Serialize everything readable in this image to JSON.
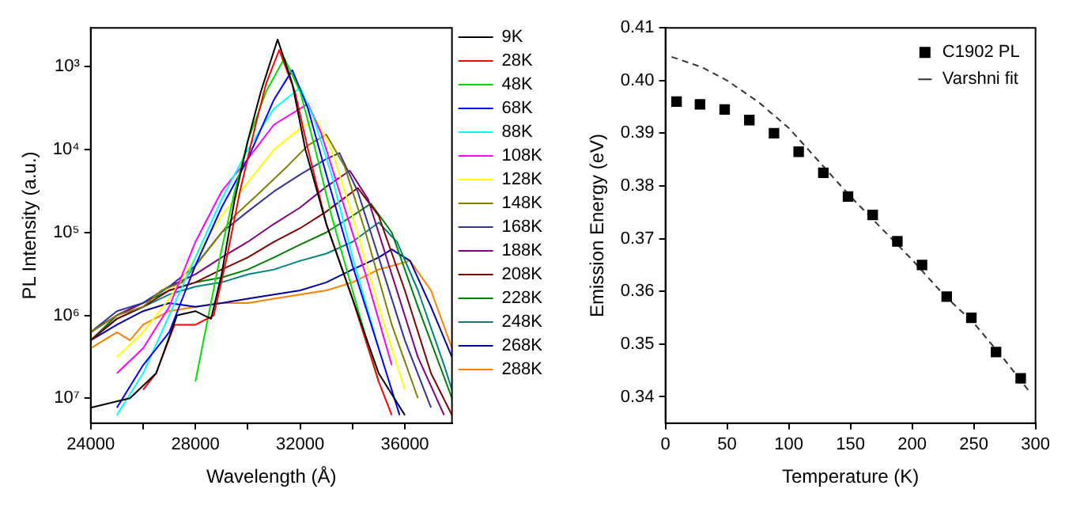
{
  "chart_data": [
    {
      "type": "line",
      "xlabel": "Wavelength (Å)",
      "ylabel": "PL Intensity (a.u.)",
      "xlim": [
        24000,
        37800
      ],
      "xticks": [
        24000,
        {
          "value": 26000,
          "label": null
        },
        28000,
        {
          "value": 30000,
          "label": null
        },
        32000,
        {
          "value": 34000,
          "label": null
        },
        36000
      ],
      "ylim": [
        20000000.0,
        340
      ],
      "yticks": [
        {
          "value": 1000,
          "label": "10³"
        },
        {
          "value": 10000,
          "label": "10⁴"
        },
        {
          "value": 100000,
          "label": "10⁵"
        },
        {
          "value": 1000000,
          "label": "10⁶"
        },
        {
          "value": 10000000,
          "label": "10⁷"
        }
      ],
      "log": "y",
      "legend": "right",
      "marker": "none",
      "series": [
        {
          "name": "9K",
          "color": "#000000",
          "x": [
            24000,
            25500,
            26500,
            27300,
            28000,
            28600,
            29000,
            29500,
            30000,
            30500,
            31140,
            31700,
            32200,
            33000,
            34000,
            35000,
            36000
          ],
          "values": [
            13000000.0,
            10000000.0,
            5000000.0,
            1000000.0,
            890000.0,
            1100000.0,
            320000.0,
            40000.0,
            7900.0,
            2000.0,
            470,
            1600.0,
            10000.0,
            79000.0,
            630000.0,
            5000000.0,
            16000000.0
          ]
        },
        {
          "name": "28K",
          "color": "#ff0000",
          "x": [
            26000,
            26500,
            27200,
            28000,
            28700,
            29200,
            29700,
            30300,
            30700,
            31200,
            31800,
            32300,
            33000,
            34000,
            35000,
            35500
          ],
          "values": [
            7900000.0,
            5000000.0,
            1300000.0,
            1300000.0,
            1000000.0,
            200000.0,
            32000.0,
            5000.0,
            1600.0,
            630,
            2000.0,
            10000.0,
            79000.0,
            630000.0,
            6300000.0,
            16000000.0
          ]
        },
        {
          "name": "48K",
          "color": "#00e000",
          "x": [
            28000,
            28500,
            29000,
            29500,
            30000,
            30700,
            31400,
            32000,
            32500,
            33200,
            34000,
            35000
          ],
          "values": [
            6300000.0,
            1000000.0,
            160000.0,
            32000.0,
            7900.0,
            2000.0,
            790,
            2000.0,
            7900.0,
            63000.0,
            500000.0,
            6300000.0
          ]
        },
        {
          "name": "68K",
          "color": "#0000ff",
          "x": [
            25000,
            26000,
            27000,
            27500,
            28000,
            29000,
            30000,
            31000,
            31700,
            32300,
            33000,
            34000,
            35000,
            35800
          ],
          "values": [
            13000000.0,
            4000000.0,
            1600000.0,
            630000.0,
            250000.0,
            50000.0,
            13000.0,
            2500.0,
            1100.0,
            3200.0,
            20000.0,
            250000.0,
            2500000.0,
            16000000.0
          ]
        },
        {
          "name": "88K",
          "color": "#00ffff",
          "x": [
            25000,
            26000,
            27000,
            28000,
            29000,
            30000,
            31000,
            32000,
            32500,
            33200,
            34000,
            35000
          ],
          "values": [
            16000000.0,
            5000000.0,
            1000000.0,
            200000.0,
            40000.0,
            10000.0,
            3200.0,
            1800.0,
            4000.0,
            20000.0,
            200000.0,
            2500000.0
          ]
        },
        {
          "name": "108K",
          "color": "#ff00ff",
          "x": [
            25000,
            26000,
            27000,
            28000,
            29000,
            30000,
            31000,
            32300,
            32800,
            33500,
            34500,
            35500
          ],
          "values": [
            5000000.0,
            2500000.0,
            790000.0,
            130000.0,
            32000.0,
            13000.0,
            5000.0,
            2800.0,
            6300.0,
            32000.0,
            320000.0,
            4000000.0
          ]
        },
        {
          "name": "128K",
          "color": "#ffff00",
          "x": [
            25000,
            26000,
            27000,
            28000,
            29000,
            30000,
            31000,
            32000,
            32600,
            33200,
            34000,
            35000,
            36000
          ],
          "values": [
            3200000.0,
            1600000.0,
            630000.0,
            200000.0,
            63000.0,
            25000.0,
            10000.0,
            5600.0,
            4300.0,
            10000.0,
            63000.0,
            790000.0,
            7900000.0
          ]
        },
        {
          "name": "148K",
          "color": "#808000",
          "x": [
            24000,
            25000,
            26000,
            26700,
            27500,
            28500,
            29500,
            30500,
            31500,
            32300,
            33000,
            33700,
            34500,
            35500,
            36500
          ],
          "values": [
            1600000.0,
            1000000.0,
            790000.0,
            500000.0,
            400000.0,
            160000.0,
            63000.0,
            32000.0,
            16000.0,
            8900.0,
            6600.0,
            16000.0,
            100000.0,
            1300000.0,
            10000000.0
          ]
        },
        {
          "name": "168K",
          "color": "#333399",
          "x": [
            24000,
            25000,
            26000,
            27000,
            28000,
            29000,
            30000,
            31000,
            32000,
            33000,
            33500,
            34200,
            35000,
            36000,
            37000
          ],
          "values": [
            1600000.0,
            890000.0,
            710000.0,
            450000.0,
            250000.0,
            100000.0,
            56000.0,
            32000.0,
            20000.0,
            13000.0,
            11000.0,
            32000.0,
            200000.0,
            2000000.0,
            13000000.0
          ]
        },
        {
          "name": "188K",
          "color": "#800080",
          "x": [
            24000,
            25000,
            26000,
            27000,
            28000,
            29000,
            30000,
            31000,
            32000,
            33000,
            33900,
            34600,
            35500,
            36500,
            37500
          ],
          "values": [
            1600000.0,
            1000000.0,
            710000.0,
            450000.0,
            320000.0,
            200000.0,
            130000.0,
            79000.0,
            50000.0,
            28000.0,
            18000.0,
            40000.0,
            320000.0,
            3200000.0,
            16000000.0
          ]
        },
        {
          "name": "208K",
          "color": "#800000",
          "x": [
            24000,
            25000,
            26000,
            27000,
            28000,
            29000,
            30000,
            31000,
            32000,
            33000,
            34200,
            35000,
            36000,
            37000,
            37800
          ],
          "values": [
            2000000.0,
            1100000.0,
            790000.0,
            500000.0,
            400000.0,
            280000.0,
            200000.0,
            130000.0,
            89000.0,
            56000.0,
            29000.0,
            63000.0,
            500000.0,
            5000000.0,
            16000000.0
          ]
        },
        {
          "name": "228K",
          "color": "#008000",
          "x": [
            24000,
            25000,
            26000,
            27000,
            28000,
            29000,
            30000,
            31000,
            32000,
            33000,
            34000,
            34700,
            35500,
            36500,
            37800
          ],
          "values": [
            2000000.0,
            1000000.0,
            710000.0,
            500000.0,
            400000.0,
            350000.0,
            280000.0,
            200000.0,
            140000.0,
            100000.0,
            63000.0,
            45000.0,
            100000.0,
            790000.0,
            10000000.0
          ]
        },
        {
          "name": "248K",
          "color": "#008080",
          "x": [
            24000,
            25000,
            26000,
            27000,
            28000,
            29000,
            30000,
            31000,
            32000,
            33000,
            34000,
            35000,
            35700,
            36500,
            37500,
            37800
          ],
          "values": [
            2000000.0,
            1100000.0,
            790000.0,
            560000.0,
            450000.0,
            400000.0,
            320000.0,
            280000.0,
            220000.0,
            180000.0,
            130000.0,
            76000.0,
            130000.0,
            500000.0,
            4000000.0,
            7900000.0
          ]
        },
        {
          "name": "268K",
          "color": "#0000a0",
          "x": [
            24000,
            25000,
            26000,
            27000,
            28000,
            29000,
            30000,
            31000,
            32000,
            33000,
            34000,
            35000,
            35500,
            36200,
            37000,
            37800
          ],
          "values": [
            2000000.0,
            1300000.0,
            890000.0,
            710000.0,
            790000.0,
            710000.0,
            630000.0,
            560000.0,
            500000.0,
            400000.0,
            280000.0,
            200000.0,
            160000.0,
            220000.0,
            790000.0,
            3200000.0
          ]
        },
        {
          "name": "288K",
          "color": "#ff8000",
          "x": [
            24000,
            25000,
            25500,
            26000,
            27000,
            28000,
            29000,
            30000,
            31000,
            32000,
            33000,
            34000,
            35000,
            36200,
            37000,
            37800
          ],
          "values": [
            2500000.0,
            1600000.0,
            2000000.0,
            1300000.0,
            890000.0,
            790000.0,
            710000.0,
            710000.0,
            630000.0,
            560000.0,
            500000.0,
            400000.0,
            280000.0,
            220000.0,
            500000.0,
            2500000.0
          ]
        }
      ]
    },
    {
      "type": "scatter",
      "xlabel": "Temperature (K)",
      "ylabel": "Emission Energy (eV)",
      "xlim": [
        0,
        300
      ],
      "xticks": [
        0,
        50,
        100,
        150,
        200,
        250,
        300
      ],
      "ylim": [
        0.335,
        0.41
      ],
      "yticks": [
        0.34,
        0.35,
        0.36,
        0.37,
        0.38,
        0.39,
        {
          "value": 0.4,
          "label": "0.40"
        },
        0.41
      ],
      "legend": "top right",
      "marker": "square",
      "series": [
        {
          "name": "C1902 PL",
          "color": "#000000",
          "x": [
            9,
            28,
            48,
            68,
            88,
            108,
            128,
            148,
            168,
            188,
            208,
            228,
            248,
            268,
            288
          ],
          "values": [
            0.396,
            0.3955,
            0.3945,
            0.3925,
            0.39,
            0.3865,
            0.3825,
            0.378,
            0.3745,
            0.3695,
            0.365,
            0.359,
            0.355,
            0.3485,
            0.3435
          ]
        },
        {
          "name": "Varshni fit",
          "type": "line",
          "color": "#333333",
          "line_style": "dashed",
          "marker": "none",
          "x": [
            5,
            30,
            50,
            75,
            100,
            125,
            150,
            175,
            200,
            225,
            250,
            275,
            295
          ],
          "values": [
            0.4045,
            0.4025,
            0.4,
            0.396,
            0.391,
            0.3845,
            0.378,
            0.372,
            0.366,
            0.3595,
            0.354,
            0.347,
            0.341
          ]
        }
      ]
    }
  ]
}
